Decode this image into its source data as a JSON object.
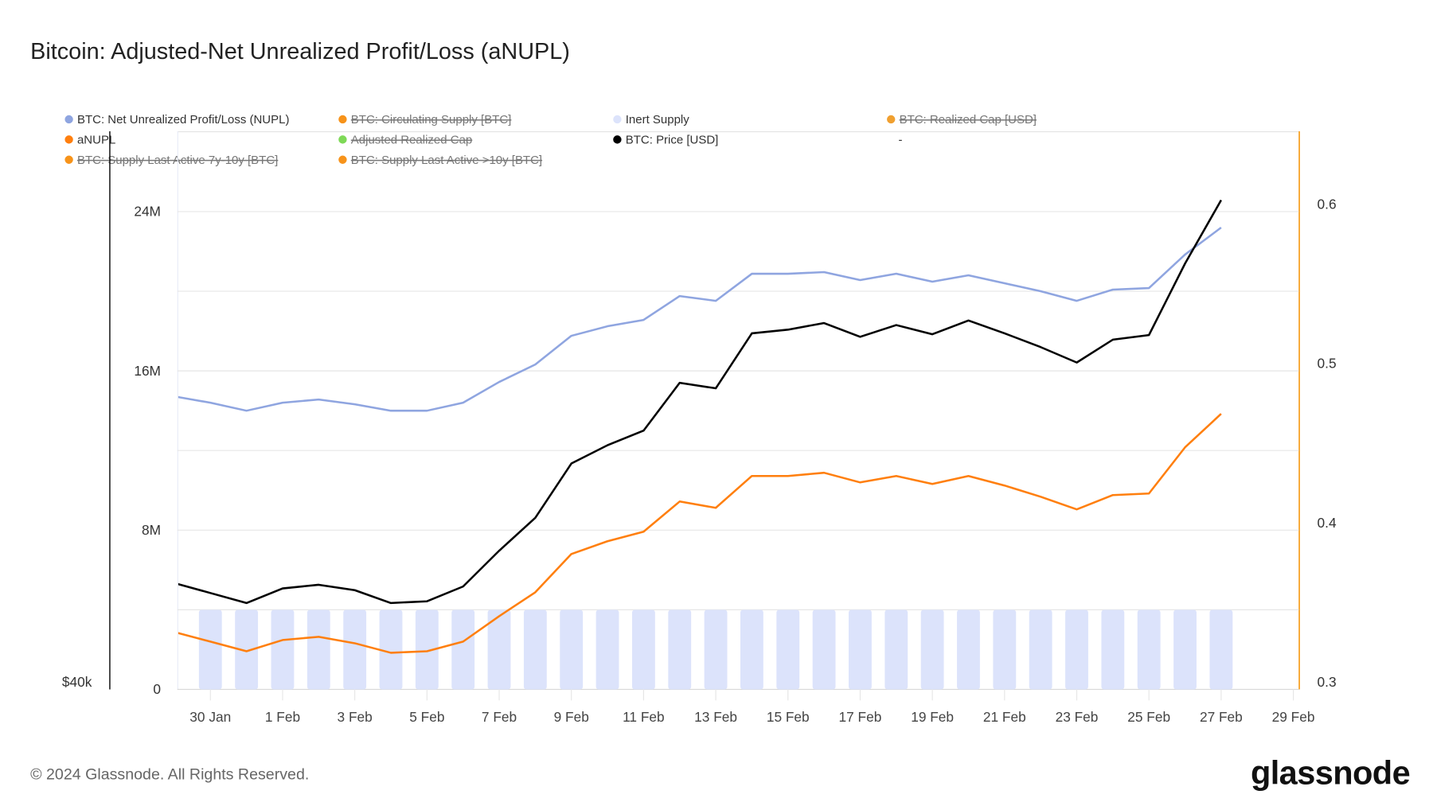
{
  "title": "Bitcoin: Adjusted-Net Unrealized Profit/Loss (aNUPL)",
  "footer": {
    "copyright": "© 2024 Glassnode. All Rights Reserved.",
    "logo": "glassnode"
  },
  "legend": [
    {
      "label": "BTC: Net Unrealized Profit/Loss (NUPL)",
      "color": "#8fa5e0",
      "hidden": false
    },
    {
      "label": "BTC: Circulating Supply [BTC]",
      "color": "#f7931a",
      "hidden": true
    },
    {
      "label": "Inert Supply",
      "color": "#dce3fb",
      "hidden": false
    },
    {
      "label": "BTC: Realized Cap [USD]",
      "color": "#f0a030",
      "hidden": true
    },
    {
      "label": "aNUPL",
      "color": "#ff7f0e",
      "hidden": false
    },
    {
      "label": "Adjusted Realized Cap",
      "color": "#7ed957",
      "hidden": true
    },
    {
      "label": "BTC: Price [USD]",
      "color": "#000000",
      "hidden": false
    },
    {
      "label": "-",
      "color": "",
      "hidden": false
    },
    {
      "label": "BTC: Supply Last Active 7y-10y [BTC]",
      "color": "#f7931a",
      "hidden": true
    },
    {
      "label": "BTC: Supply Last Active >10y [BTC]",
      "color": "#f7931a",
      "hidden": true
    }
  ],
  "chart_data": {
    "type": "line",
    "title": "Bitcoin: Adjusted-Net Unrealized Profit/Loss (aNUPL)",
    "x": [
      "2024-01-29",
      "2024-01-30",
      "2024-01-31",
      "2024-02-01",
      "2024-02-02",
      "2024-02-03",
      "2024-02-04",
      "2024-02-05",
      "2024-02-06",
      "2024-02-07",
      "2024-02-08",
      "2024-02-09",
      "2024-02-10",
      "2024-02-11",
      "2024-02-12",
      "2024-02-13",
      "2024-02-14",
      "2024-02-15",
      "2024-02-16",
      "2024-02-17",
      "2024-02-18",
      "2024-02-19",
      "2024-02-20",
      "2024-02-21",
      "2024-02-22",
      "2024-02-23",
      "2024-02-24",
      "2024-02-25",
      "2024-02-26",
      "2024-02-27"
    ],
    "x_ticks": [
      "30 Jan",
      "1 Feb",
      "3 Feb",
      "5 Feb",
      "7 Feb",
      "9 Feb",
      "11 Feb",
      "13 Feb",
      "15 Feb",
      "17 Feb",
      "19 Feb",
      "21 Feb",
      "23 Feb",
      "25 Feb",
      "27 Feb",
      "29 Feb"
    ],
    "y_left": {
      "ticks": [
        "0",
        "8M",
        "16M",
        "24M"
      ],
      "range": [
        0,
        28000000
      ]
    },
    "y_right": {
      "ticks": [
        "0.3",
        "0.4",
        "0.5",
        "0.6"
      ],
      "range": [
        0.3,
        0.65
      ]
    },
    "y_price": {
      "ticks": [
        "$40k"
      ],
      "min": 40000
    },
    "grid": true,
    "series": [
      {
        "name": "BTC: Net Unrealized Profit/Loss (NUPL)",
        "axis": "right",
        "color": "#8fa5e0",
        "values": [
          0.484,
          0.48,
          0.475,
          0.48,
          0.482,
          0.479,
          0.475,
          0.475,
          0.48,
          0.493,
          0.504,
          0.522,
          0.528,
          0.532,
          0.547,
          0.544,
          0.561,
          0.561,
          0.562,
          0.557,
          0.561,
          0.556,
          0.56,
          0.555,
          0.55,
          0.544,
          0.551,
          0.552,
          0.573,
          0.59
        ]
      },
      {
        "name": "aNUPL",
        "axis": "right",
        "color": "#ff7f0e",
        "values": [
          0.336,
          0.33,
          0.324,
          0.331,
          0.333,
          0.329,
          0.323,
          0.324,
          0.33,
          0.346,
          0.361,
          0.385,
          0.393,
          0.399,
          0.418,
          0.414,
          0.434,
          0.434,
          0.436,
          0.43,
          0.434,
          0.429,
          0.434,
          0.428,
          0.421,
          0.413,
          0.422,
          0.423,
          0.452,
          0.473
        ]
      },
      {
        "name": "BTC: Price [USD]",
        "axis": "price",
        "color": "#000000",
        "values": [
          43720,
          43370,
          43020,
          43530,
          43660,
          43470,
          43020,
          43080,
          43600,
          44850,
          46000,
          47900,
          48540,
          49050,
          50720,
          50530,
          52450,
          52580,
          52810,
          52330,
          52740,
          52420,
          52900,
          52450,
          51970,
          51430,
          52230,
          52390,
          54890,
          57110
        ]
      },
      {
        "name": "Inert Supply",
        "axis": "left",
        "type": "bar",
        "color": "#dce3fb",
        "values": [
          null,
          4000000,
          4000000,
          4000000,
          4000000,
          4000000,
          4000000,
          4000000,
          4000000,
          4000000,
          4000000,
          4000000,
          4000000,
          4000000,
          4000000,
          4000000,
          4000000,
          4000000,
          4000000,
          4000000,
          4000000,
          4000000,
          4000000,
          4000000,
          4000000,
          4000000,
          4000000,
          4000000,
          4000000,
          4000000
        ]
      }
    ]
  }
}
